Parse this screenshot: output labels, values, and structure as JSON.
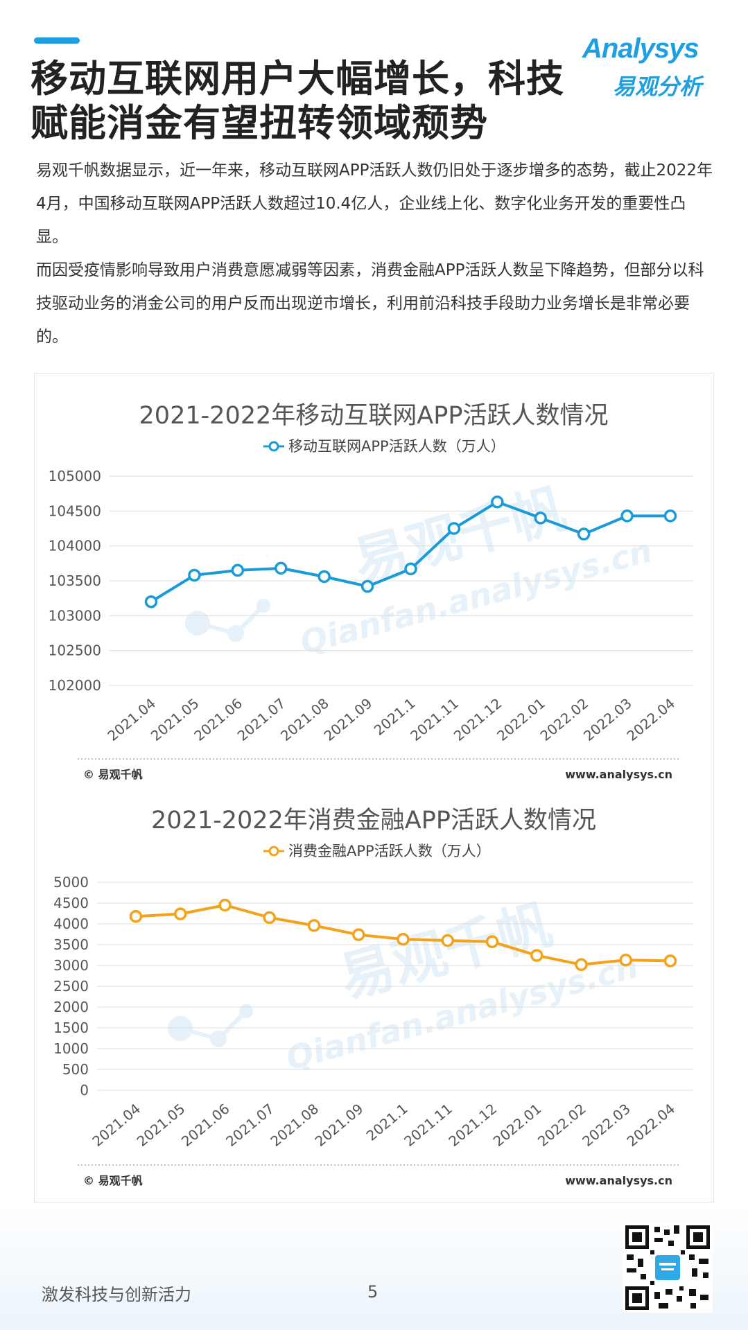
{
  "header": {
    "title": "移动互联网用户大幅增长，科技赋能消金有望扭转领域颓势",
    "logo_text": "Analysys",
    "logo_cn": "易观分析"
  },
  "intro": {
    "paragraphs": [
      "易观千帆数据显示，近一年来，移动互联网APP活跃人数仍旧处于逐步增多的态势，截止2022年4月，中国移动互联网APP活跃人数超过10.4亿人，企业线上化、数字化业务开发的重要性凸显。",
      "而因受疫情影响导致用户消费意愿减弱等因素，消费金融APP活跃人数呈下降趋势，但部分以科技驱动业务的消金公司的用户反而出现逆市增长，利用前沿科技手段助力业务增长是非常必要的。"
    ]
  },
  "watermark": {
    "cn": "易观千帆",
    "en": "Qianfan.analysys.cn"
  },
  "chart_data": [
    {
      "type": "line",
      "title": "2021-2022年移动互联网APP活跃人数情况",
      "categories": [
        "2021.04",
        "2021.05",
        "2021.06",
        "2021.07",
        "2021.08",
        "2021.09",
        "2021.1",
        "2021.11",
        "2021.12",
        "2022.01",
        "2022.02",
        "2022.03",
        "2022.04"
      ],
      "series": [
        {
          "name": "移动互联网APP活跃人数（万人）",
          "values": [
            103200,
            103580,
            103650,
            103680,
            103560,
            103420,
            103670,
            104250,
            104630,
            104400,
            104170,
            104430,
            104430
          ]
        }
      ],
      "yticks": [
        "102000",
        "102500",
        "103000",
        "103500",
        "104000",
        "104500",
        "105000"
      ],
      "ylim": [
        102000,
        105000
      ],
      "color": "#1a9bd7",
      "legend_position": "top",
      "grid": true,
      "source": "© 易观千帆",
      "site": "www.analysys.cn"
    },
    {
      "type": "line",
      "title": "2021-2022年消费金融APP活跃人数情况",
      "categories": [
        "2021.04",
        "2021.05",
        "2021.06",
        "2021.07",
        "2021.08",
        "2021.09",
        "2021.1",
        "2021.11",
        "2021.12",
        "2022.01",
        "2022.02",
        "2022.03",
        "2022.04"
      ],
      "series": [
        {
          "name": "消费金融APP活跃人数（万人）",
          "values": [
            4180,
            4240,
            4450,
            4150,
            3960,
            3740,
            3630,
            3600,
            3570,
            3240,
            3020,
            3130,
            3110
          ]
        }
      ],
      "yticks": [
        "0",
        "500",
        "1000",
        "1500",
        "2000",
        "2500",
        "3000",
        "3500",
        "4000",
        "4500",
        "5000"
      ],
      "ylim": [
        0,
        5000
      ],
      "color": "#f5a21b",
      "legend_position": "top",
      "grid": true,
      "source": "© 易观千帆",
      "site": "www.analysys.cn"
    }
  ],
  "footer": {
    "slogan": "激发科技与创新活力",
    "page_number": "5"
  }
}
